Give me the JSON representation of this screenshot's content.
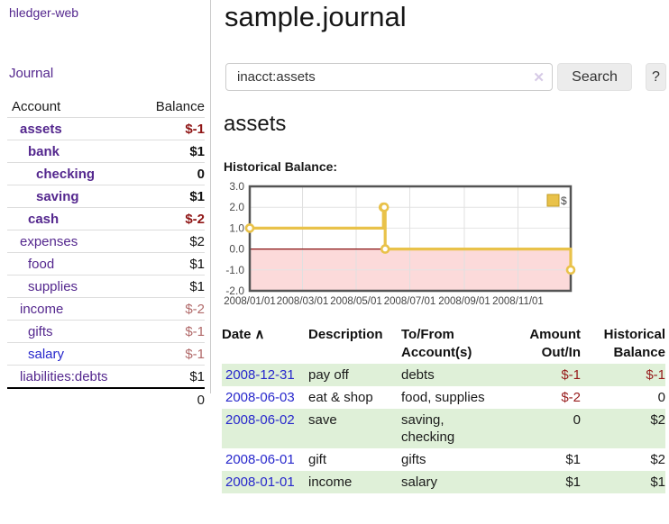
{
  "app": {
    "brand": "hledger-web",
    "nav_journal": "Journal"
  },
  "header": {
    "title": "sample.journal"
  },
  "search": {
    "value": "inacct:assets",
    "clear_icon": "✕",
    "button_label": "Search",
    "help_label": "?"
  },
  "sidebar": {
    "column_account": "Account",
    "column_balance": "Balance",
    "accounts": [
      {
        "name": "assets",
        "balance": "$-1"
      },
      {
        "name": "bank",
        "balance": "$1"
      },
      {
        "name": "checking",
        "balance": "0"
      },
      {
        "name": "saving",
        "balance": "$1"
      },
      {
        "name": "cash",
        "balance": "$-2"
      },
      {
        "name": "expenses",
        "balance": "$2"
      },
      {
        "name": "food",
        "balance": "$1"
      },
      {
        "name": "supplies",
        "balance": "$1"
      },
      {
        "name": "income",
        "balance": "$-2"
      },
      {
        "name": "gifts",
        "balance": "$-1"
      },
      {
        "name": "salary",
        "balance": "$-1"
      },
      {
        "name": "liabilities:debts",
        "balance": "$1"
      }
    ],
    "total": "0"
  },
  "account_page": {
    "title": "assets",
    "chart_label": "Historical Balance:"
  },
  "chart_data": {
    "type": "line",
    "step": true,
    "title": "Historical Balance:",
    "series": [
      {
        "name": "$",
        "color": "#e9c24a",
        "points": [
          [
            "2008-01-01",
            1
          ],
          [
            "2008-06-01",
            2
          ],
          [
            "2008-06-02",
            2
          ],
          [
            "2008-06-03",
            0
          ],
          [
            "2008-12-31",
            -1
          ]
        ]
      }
    ],
    "xrange": [
      "2008-01-01",
      "2008-12-31"
    ],
    "ylim": [
      -2,
      3
    ],
    "yticks": [
      3.0,
      2.0,
      1.0,
      0.0,
      -1.0,
      -2.0
    ],
    "xticks": [
      {
        "label": "2008/01/01",
        "date": "2008-01-01"
      },
      {
        "label": "2008/03/01",
        "date": "2008-03-01"
      },
      {
        "label": "2008/05/01",
        "date": "2008-05-01"
      },
      {
        "label": "2008/07/01",
        "date": "2008-07-01"
      },
      {
        "label": "2008/09/01",
        "date": "2008-09-01"
      },
      {
        "label": "2008/11/01",
        "date": "2008-11-01"
      }
    ],
    "grid": true,
    "legend_position": "top-right",
    "negative_fill": "#fcdada",
    "zero_line_color": "#871010"
  },
  "register": {
    "headers": {
      "date": "Date",
      "sort_indicator": "∧",
      "description": "Description",
      "accounts": "To/From Account(s)",
      "amount": "Amount Out/In",
      "balance": "Historical Balance"
    },
    "rows": [
      {
        "date": "2008-12-31",
        "description": "pay off",
        "accounts": "debts",
        "amount": "$-1",
        "balance": "$-1"
      },
      {
        "date": "2008-06-03",
        "description": "eat & shop",
        "accounts": "food, supplies",
        "amount": "$-2",
        "balance": "0"
      },
      {
        "date": "2008-06-02",
        "description": "save",
        "accounts": "saving, checking",
        "amount": "0",
        "balance": "$2"
      },
      {
        "date": "2008-06-01",
        "description": "gift",
        "accounts": "gifts",
        "amount": "$1",
        "balance": "$2"
      },
      {
        "date": "2008-01-01",
        "description": "income",
        "accounts": "salary",
        "amount": "$1",
        "balance": "$1"
      }
    ]
  }
}
